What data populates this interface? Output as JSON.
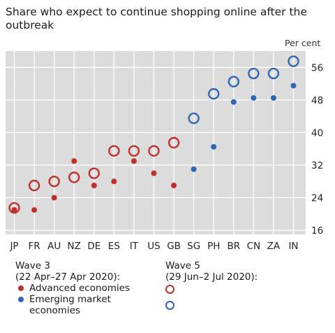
{
  "chart_data": {
    "type": "scatter",
    "title": "Share who expect to continue shopping online after the outbreak",
    "unit": "Per cent",
    "ylim": [
      15,
      60
    ],
    "yticks": [
      16,
      24,
      32,
      40,
      48,
      56
    ],
    "grid": true,
    "categories": [
      "JP",
      "FR",
      "AU",
      "NZ",
      "DE",
      "ES",
      "IT",
      "US",
      "GB",
      "SG",
      "PH",
      "BR",
      "CN",
      "ZA",
      "IN"
    ],
    "series": [
      {
        "name": "Wave 3 – Advanced economies",
        "marker": "filled",
        "color": "#c0302b",
        "values": [
          21,
          21,
          24,
          33,
          27,
          28,
          33,
          30,
          27,
          null,
          null,
          null,
          null,
          null,
          null
        ]
      },
      {
        "name": "Wave 3 – Emerging market economies",
        "marker": "filled",
        "color": "#2f66b3",
        "values": [
          null,
          null,
          null,
          null,
          null,
          null,
          null,
          null,
          null,
          31,
          36.5,
          47.5,
          48.5,
          48.5,
          51.5
        ]
      },
      {
        "name": "Wave 5 – Advanced economies",
        "marker": "ring",
        "color": "#c0302b",
        "values": [
          21.5,
          27,
          28,
          29,
          30,
          35.5,
          35.5,
          35.5,
          37.5,
          null,
          null,
          null,
          null,
          null,
          null
        ]
      },
      {
        "name": "Wave 5 – Emerging market economies",
        "marker": "ring",
        "color": "#2f66b3",
        "values": [
          null,
          null,
          null,
          null,
          null,
          null,
          null,
          null,
          null,
          43.5,
          49.5,
          52.5,
          54.5,
          54.5,
          57.5
        ]
      }
    ]
  },
  "legend": {
    "wave3_title": "Wave 3",
    "wave3_dates": "(22 Apr–27 Apr 2020):",
    "wave5_title": "Wave 5",
    "wave5_dates": "(29 Jun–2 Jul 2020):",
    "advanced_label": "Advanced economies",
    "emerging_label_1": "Emerging market",
    "emerging_label_2": "economies"
  }
}
